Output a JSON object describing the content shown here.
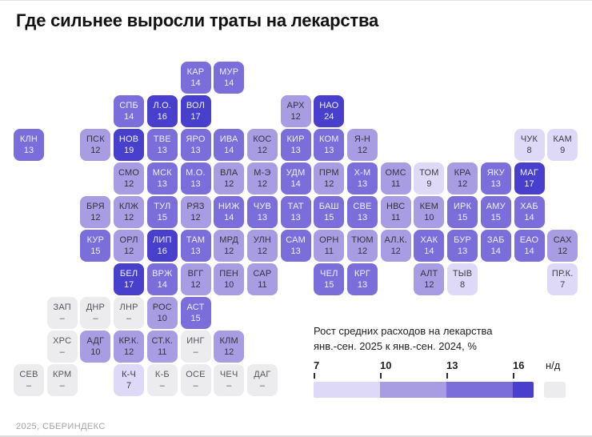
{
  "title": "Где сильнее выросли траты на лекарства",
  "footer": {
    "source": "2025, СБЕРИНДЕКС"
  },
  "legend": {
    "title_line1": "Рост средних расходов на лекарства",
    "title_line2": "янв.-сен. 2025 к янв.-сен. 2024, %",
    "no_data_label": "н/д"
  },
  "chart_data": {
    "type": "heatmap",
    "subtype": "tile-cartogram",
    "title": "Где сильнее выросли траты на лекарства",
    "metric": "Рост средних расходов на лекарства янв.-сен. 2025 к янв.-сен. 2024, %",
    "unit": "%",
    "no_data_symbol": "–",
    "scale": {
      "legend_ticks": [
        7,
        10,
        13,
        16
      ],
      "thresholds": [
        10,
        13,
        16
      ],
      "band_colors": [
        "#ded9f7",
        "#a89ce3",
        "#7b6eda",
        "#4840cc"
      ],
      "band_text_colors": [
        "#3c3c46",
        "#34343e",
        "#f0eefb",
        "#f2f1fd"
      ],
      "no_data_color": "#ececee",
      "no_data_text_color": "#55555e"
    },
    "regions": [
      {
        "code": "КАР",
        "value": 14,
        "row": 1,
        "col": 6
      },
      {
        "code": "МУР",
        "value": 14,
        "row": 1,
        "col": 7
      },
      {
        "code": "СПБ",
        "value": 14,
        "row": 2,
        "col": 4
      },
      {
        "code": "Л.О.",
        "value": 16,
        "row": 2,
        "col": 5
      },
      {
        "code": "ВОЛ",
        "value": 17,
        "row": 2,
        "col": 6
      },
      {
        "code": "АРХ",
        "value": 12,
        "row": 2,
        "col": 9
      },
      {
        "code": "НАО",
        "value": 24,
        "row": 2,
        "col": 10
      },
      {
        "code": "КЛН",
        "value": 13,
        "row": 3,
        "col": 1
      },
      {
        "code": "ПСК",
        "value": 12,
        "row": 3,
        "col": 3
      },
      {
        "code": "НОВ",
        "value": 19,
        "row": 3,
        "col": 4
      },
      {
        "code": "ТВЕ",
        "value": 13,
        "row": 3,
        "col": 5
      },
      {
        "code": "ЯРО",
        "value": 13,
        "row": 3,
        "col": 6
      },
      {
        "code": "ИВА",
        "value": 14,
        "row": 3,
        "col": 7
      },
      {
        "code": "КОС",
        "value": 12,
        "row": 3,
        "col": 8
      },
      {
        "code": "КИР",
        "value": 13,
        "row": 3,
        "col": 9
      },
      {
        "code": "КОМ",
        "value": 13,
        "row": 3,
        "col": 10
      },
      {
        "code": "Я-Н",
        "value": 12,
        "row": 3,
        "col": 11
      },
      {
        "code": "ЧУК",
        "value": 8,
        "row": 3,
        "col": 16
      },
      {
        "code": "КАМ",
        "value": 9,
        "row": 3,
        "col": 17
      },
      {
        "code": "СМО",
        "value": 12,
        "row": 4,
        "col": 4
      },
      {
        "code": "МСК",
        "value": 13,
        "row": 4,
        "col": 5
      },
      {
        "code": "М.О.",
        "value": 13,
        "row": 4,
        "col": 6
      },
      {
        "code": "ВЛА",
        "value": 12,
        "row": 4,
        "col": 7
      },
      {
        "code": "М-Э",
        "value": 12,
        "row": 4,
        "col": 8
      },
      {
        "code": "УДМ",
        "value": 14,
        "row": 4,
        "col": 9
      },
      {
        "code": "ПРМ",
        "value": 12,
        "row": 4,
        "col": 10
      },
      {
        "code": "Х-М",
        "value": 13,
        "row": 4,
        "col": 11
      },
      {
        "code": "ОМС",
        "value": 11,
        "row": 4,
        "col": 12
      },
      {
        "code": "ТОМ",
        "value": 9,
        "row": 4,
        "col": 13
      },
      {
        "code": "КРА",
        "value": 12,
        "row": 4,
        "col": 14
      },
      {
        "code": "ЯКУ",
        "value": 13,
        "row": 4,
        "col": 15
      },
      {
        "code": "МАГ",
        "value": 17,
        "row": 4,
        "col": 16
      },
      {
        "code": "БРЯ",
        "value": 12,
        "row": 5,
        "col": 3
      },
      {
        "code": "КЛЖ",
        "value": 12,
        "row": 5,
        "col": 4
      },
      {
        "code": "ТУЛ",
        "value": 15,
        "row": 5,
        "col": 5
      },
      {
        "code": "РЯЗ",
        "value": 12,
        "row": 5,
        "col": 6
      },
      {
        "code": "НИЖ",
        "value": 14,
        "row": 5,
        "col": 7
      },
      {
        "code": "ЧУВ",
        "value": 13,
        "row": 5,
        "col": 8
      },
      {
        "code": "ТАТ",
        "value": 13,
        "row": 5,
        "col": 9
      },
      {
        "code": "БАШ",
        "value": 15,
        "row": 5,
        "col": 10
      },
      {
        "code": "СВЕ",
        "value": 13,
        "row": 5,
        "col": 11
      },
      {
        "code": "НВС",
        "value": 11,
        "row": 5,
        "col": 12
      },
      {
        "code": "КЕМ",
        "value": 10,
        "row": 5,
        "col": 13
      },
      {
        "code": "ИРК",
        "value": 15,
        "row": 5,
        "col": 14
      },
      {
        "code": "АМУ",
        "value": 15,
        "row": 5,
        "col": 15
      },
      {
        "code": "ХАБ",
        "value": 14,
        "row": 5,
        "col": 16
      },
      {
        "code": "КУР",
        "value": 15,
        "row": 6,
        "col": 3
      },
      {
        "code": "ОРЛ",
        "value": 12,
        "row": 6,
        "col": 4
      },
      {
        "code": "ЛИП",
        "value": 16,
        "row": 6,
        "col": 5
      },
      {
        "code": "ТАМ",
        "value": 13,
        "row": 6,
        "col": 6
      },
      {
        "code": "МРД",
        "value": 12,
        "row": 6,
        "col": 7
      },
      {
        "code": "УЛН",
        "value": 12,
        "row": 6,
        "col": 8
      },
      {
        "code": "САМ",
        "value": 13,
        "row": 6,
        "col": 9
      },
      {
        "code": "ОРН",
        "value": 11,
        "row": 6,
        "col": 10
      },
      {
        "code": "ТЮМ",
        "value": 12,
        "row": 6,
        "col": 11
      },
      {
        "code": "АЛ.К.",
        "value": 12,
        "row": 6,
        "col": 12
      },
      {
        "code": "ХАК",
        "value": 14,
        "row": 6,
        "col": 13
      },
      {
        "code": "БУР",
        "value": 13,
        "row": 6,
        "col": 14
      },
      {
        "code": "ЗАБ",
        "value": 14,
        "row": 6,
        "col": 15
      },
      {
        "code": "ЕАО",
        "value": 14,
        "row": 6,
        "col": 16
      },
      {
        "code": "САХ",
        "value": 12,
        "row": 6,
        "col": 17
      },
      {
        "code": "БЕЛ",
        "value": 17,
        "row": 7,
        "col": 4
      },
      {
        "code": "ВРЖ",
        "value": 14,
        "row": 7,
        "col": 5
      },
      {
        "code": "ВГГ",
        "value": 12,
        "row": 7,
        "col": 6
      },
      {
        "code": "ПЕН",
        "value": 10,
        "row": 7,
        "col": 7
      },
      {
        "code": "САР",
        "value": 11,
        "row": 7,
        "col": 8
      },
      {
        "code": "ЧЕЛ",
        "value": 15,
        "row": 7,
        "col": 10
      },
      {
        "code": "КРГ",
        "value": 13,
        "row": 7,
        "col": 11
      },
      {
        "code": "АЛТ",
        "value": 12,
        "row": 7,
        "col": 13
      },
      {
        "code": "ТЫВ",
        "value": 8,
        "row": 7,
        "col": 14
      },
      {
        "code": "ПР.К.",
        "value": 7,
        "row": 7,
        "col": 17
      },
      {
        "code": "ЗАП",
        "value": null,
        "row": 8,
        "col": 2
      },
      {
        "code": "ДНР",
        "value": null,
        "row": 8,
        "col": 3
      },
      {
        "code": "ЛНР",
        "value": null,
        "row": 8,
        "col": 4
      },
      {
        "code": "РОС",
        "value": 10,
        "row": 8,
        "col": 5
      },
      {
        "code": "АСТ",
        "value": 15,
        "row": 8,
        "col": 6
      },
      {
        "code": "ХРС",
        "value": null,
        "row": 9,
        "col": 2
      },
      {
        "code": "АДГ",
        "value": 10,
        "row": 9,
        "col": 3
      },
      {
        "code": "КР.К.",
        "value": 12,
        "row": 9,
        "col": 4
      },
      {
        "code": "СТ.К.",
        "value": 11,
        "row": 9,
        "col": 5
      },
      {
        "code": "ИНГ",
        "value": null,
        "row": 9,
        "col": 6
      },
      {
        "code": "КЛМ",
        "value": 12,
        "row": 9,
        "col": 7
      },
      {
        "code": "СЕВ",
        "value": null,
        "row": 10,
        "col": 1
      },
      {
        "code": "КРМ",
        "value": null,
        "row": 10,
        "col": 2
      },
      {
        "code": "К-Ч",
        "value": 7,
        "row": 10,
        "col": 4
      },
      {
        "code": "К-Б",
        "value": null,
        "row": 10,
        "col": 5
      },
      {
        "code": "ОСЕ",
        "value": null,
        "row": 10,
        "col": 6
      },
      {
        "code": "ЧЕЧ",
        "value": null,
        "row": 10,
        "col": 7
      },
      {
        "code": "ДАГ",
        "value": null,
        "row": 10,
        "col": 8
      }
    ]
  }
}
